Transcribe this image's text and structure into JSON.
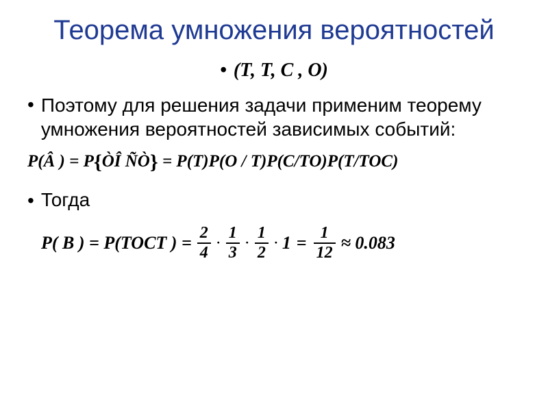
{
  "title": "Теорема умножения вероятностей",
  "sequence": "(Т, Т, С , О)",
  "body_text": "Поэтому для решения задачи применим теорему умножения вероятностей зависимых событий:",
  "formula1_lhs": "P(Â ) = P",
  "formula1_braces": "ÒÎ ÑÒ",
  "formula1_rhs": " = P(T)P(O / T)P(C/TO)P(T/TOC)",
  "togda": "Тогда",
  "formula2_lhs": "P( B ) = P(TOCT ) =",
  "frac1_num": "2",
  "frac1_den": "4",
  "frac2_num": "1",
  "frac2_den": "3",
  "frac3_num": "1",
  "frac3_den": "2",
  "mult_one": "1",
  "eq": "=",
  "frac4_num": "1",
  "frac4_den": "12",
  "approx": "≈ 0.083",
  "cdot": "·"
}
